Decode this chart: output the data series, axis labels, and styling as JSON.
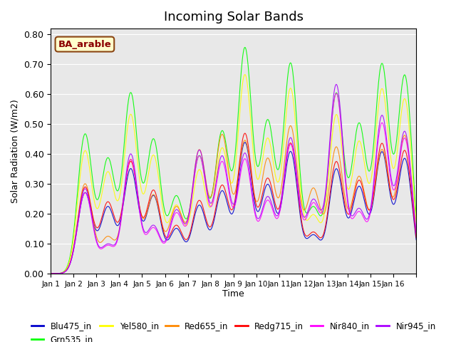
{
  "title": "Incoming Solar Bands",
  "xlabel": "Time",
  "ylabel": "Solar Radiation (W/m2)",
  "site_label": "BA_arable",
  "ylim": [
    0,
    0.82
  ],
  "yticks": [
    0.0,
    0.1,
    0.2,
    0.3,
    0.4,
    0.5,
    0.6,
    0.7,
    0.8
  ],
  "xtick_positions": [
    0,
    1,
    2,
    3,
    4,
    5,
    6,
    7,
    8,
    9,
    10,
    11,
    12,
    13,
    14,
    15,
    16
  ],
  "xtick_labels": [
    "Jan 1",
    "Jan 2",
    "Jan 3",
    "Jan 4",
    "Jan 5",
    "Jan 6",
    "Jan 7",
    "Jan 8",
    "Jan 9",
    "Jan 10",
    "Jan 11",
    "Jan 12",
    "Jan 13",
    "Jan 14",
    "Jan 15",
    "Jan 16",
    ""
  ],
  "n_days": 16,
  "bands": [
    {
      "name": "Blu475_in",
      "color": "#0000cc"
    },
    {
      "name": "Grn535_in",
      "color": "#00ff00"
    },
    {
      "name": "Yel580_in",
      "color": "#ffff00"
    },
    {
      "name": "Red655_in",
      "color": "#ff8800"
    },
    {
      "name": "Redg715_in",
      "color": "#ff0000"
    },
    {
      "name": "Nir840_in",
      "color": "#ff00ff"
    },
    {
      "name": "Nir945_in",
      "color": "#aa00ff"
    }
  ],
  "background_color": "#e8e8e8",
  "peak_heights_grn": [
    0.465,
    0.38,
    0.6,
    0.445,
    0.255,
    0.39,
    0.47,
    0.75,
    0.505,
    0.7,
    0.215,
    0.6,
    0.495,
    0.695,
    0.66
  ],
  "peak_heights_mag": [
    0.27,
    0.09,
    0.38,
    0.15,
    0.2,
    0.39,
    0.37,
    0.38,
    0.24,
    0.43,
    0.23,
    0.6,
    0.2,
    0.5,
    0.45
  ],
  "peak_heights_red": [
    0.3,
    0.12,
    0.38,
    0.26,
    0.22,
    0.41,
    0.46,
    0.44,
    0.38,
    0.49,
    0.28,
    0.42,
    0.32,
    0.41,
    0.46
  ]
}
